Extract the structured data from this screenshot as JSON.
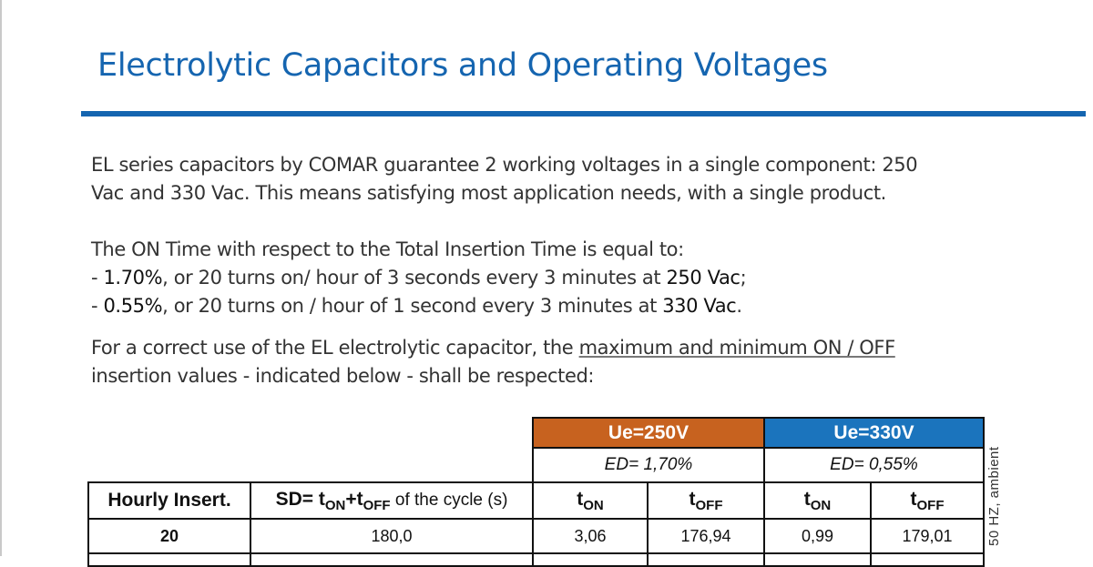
{
  "title": "Electrolytic Capacitors and Operating Voltages",
  "paragraph1": {
    "line1": "EL series capacitors by COMAR guarantee 2 working voltages in a single component: 250",
    "line2": "Vac and 330 Vac. This means satisfying most application needs, with a single product."
  },
  "paragraph2": {
    "line1": "The ON Time with respect to the Total Insertion Time is equal to:",
    "line2_prefix": "- ",
    "line2_percent": "1.70%",
    "line2_middle": ", or 20 turns on/ hour of 3 seconds every 3 minutes at ",
    "line2_voltage": "250 Vac",
    "line2_suffix": ";",
    "line3_prefix": "- ",
    "line3_percent": "0.55%",
    "line3_middle": ", or 20 turns on / hour of 1 second every 3 minutes at ",
    "line3_voltage": "330 Vac",
    "line3_suffix": "."
  },
  "paragraph3": {
    "line1_prefix": "For a correct use of the EL electrolytic capacitor, the ",
    "line1_link": "maximum and minimum ON / OFF",
    "line2": "insertion values - indicated below - shall be respected:"
  },
  "table": {
    "ue250_header": "Ue=250V",
    "ue330_header": "Ue=330V",
    "ed250": "ED= 1,70%",
    "ed330": "ED= 0,55%",
    "col_hourly": "Hourly Insert.",
    "col_sd_prefix": "SD= t",
    "col_sd_on": "ON",
    "col_sd_plus": "+t",
    "col_sd_off": "OFF",
    "col_sd_suffix": " of the cycle (s)",
    "t_letter": "t",
    "on_sub": "ON",
    "off_sub": "OFF",
    "rows": [
      {
        "hourly": "20",
        "sd": "180,0",
        "ton250": "3,06",
        "toff250": "176,94",
        "ton330": "0,99",
        "toff330": "179,01"
      }
    ]
  },
  "side_note": "50 HZ, ambient"
}
